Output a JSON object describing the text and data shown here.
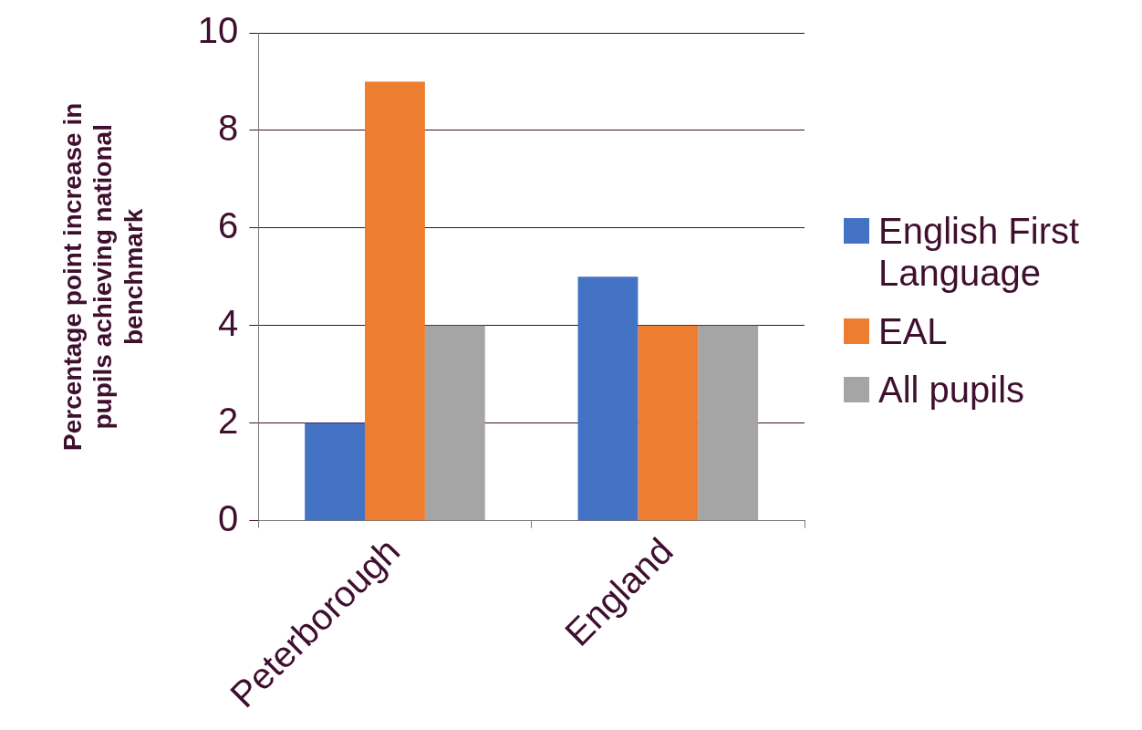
{
  "chart_data": {
    "type": "bar",
    "ylabel": "Percentage point increase in pupils achieving national benchmark",
    "categories": [
      "Peterborough",
      "England"
    ],
    "series": [
      {
        "name": "English First Language",
        "color": "#4472c4",
        "values": [
          2,
          5
        ]
      },
      {
        "name": "EAL",
        "color": "#ed7d31",
        "values": [
          9,
          4
        ]
      },
      {
        "name": "All pupils",
        "color": "#a5a5a5",
        "values": [
          4,
          4
        ]
      }
    ],
    "ylim": [
      0,
      10
    ],
    "yticks": [
      0,
      2,
      4,
      6,
      8,
      10
    ],
    "grid": "y",
    "legend": "right"
  }
}
